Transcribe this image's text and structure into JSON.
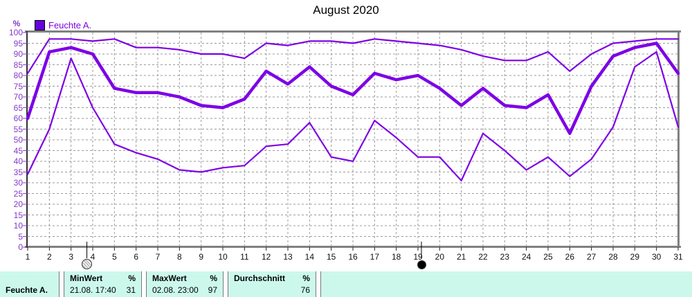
{
  "title": "August 2020",
  "legend": {
    "label": "Feuchte A."
  },
  "y_axis_unit": "%",
  "colors": {
    "series_line": "#7D00E6",
    "axis_label_purple": "#8638C8",
    "legend_swatch": "#6600DD",
    "grid_gray": "#999999",
    "frame_gray": "#808080",
    "tick_dark": "#222222",
    "table_background": "#CCF8EC",
    "table_divider": "#787878"
  },
  "chart_data": {
    "type": "line",
    "title": "August 2020",
    "ylabel": "%",
    "ylim": [
      0,
      100
    ],
    "grid": true,
    "legend_position": "top-left",
    "legend_entries": [
      "Feuchte A."
    ],
    "x": [
      1,
      2,
      3,
      4,
      5,
      6,
      7,
      8,
      9,
      10,
      11,
      12,
      13,
      14,
      15,
      16,
      17,
      18,
      19,
      20,
      21,
      22,
      23,
      24,
      25,
      26,
      27,
      28,
      29,
      30,
      31
    ],
    "x_ticks": [
      1,
      2,
      3,
      4,
      5,
      6,
      7,
      8,
      9,
      10,
      11,
      12,
      13,
      14,
      15,
      16,
      17,
      18,
      19,
      20,
      21,
      22,
      23,
      24,
      25,
      26,
      27,
      28,
      29,
      30,
      31
    ],
    "y_ticks": [
      0,
      5,
      10,
      15,
      20,
      25,
      30,
      35,
      40,
      45,
      50,
      55,
      60,
      65,
      70,
      75,
      80,
      85,
      90,
      95,
      100
    ],
    "series": [
      {
        "name": "Feuchte A. MaxWert",
        "role": "max",
        "values": [
          81,
          97,
          97,
          96,
          97,
          93,
          93,
          92,
          90,
          90,
          88,
          95,
          94,
          96,
          96,
          95,
          97,
          96,
          95,
          94,
          92,
          89,
          87,
          87,
          91,
          82,
          90,
          95,
          96,
          97,
          97
        ]
      },
      {
        "name": "Feuchte A. Durchschnitt",
        "role": "avg",
        "values": [
          60,
          91,
          93,
          90,
          74,
          72,
          72,
          70,
          66,
          65,
          69,
          82,
          76,
          84,
          75,
          71,
          81,
          78,
          80,
          74,
          66,
          74,
          66,
          65,
          71,
          53,
          75,
          89,
          93,
          95,
          81
        ]
      },
      {
        "name": "Feuchte A. MinWert",
        "role": "min",
        "values": [
          34,
          55,
          88,
          65,
          48,
          44,
          41,
          36,
          35,
          37,
          38,
          47,
          48,
          58,
          42,
          40,
          59,
          51,
          42,
          42,
          31,
          53,
          45,
          36,
          42,
          33,
          41,
          56,
          84,
          91,
          56
        ]
      }
    ],
    "moon_markers": [
      {
        "x": 3.73,
        "phase": "full-moon"
      },
      {
        "x": 19.16,
        "phase": "new-moon"
      }
    ]
  },
  "summary_table": {
    "row_label": "Feuchte A.",
    "columns": [
      {
        "header": "MinWert",
        "unit": "%",
        "value": "21.08.  17:40",
        "number": "31"
      },
      {
        "header": "MaxWert",
        "unit": "%",
        "value": "02.08.  23:00",
        "number": "97"
      },
      {
        "header": "Durchschnitt",
        "unit": "%",
        "value": "",
        "number": "76"
      }
    ]
  }
}
